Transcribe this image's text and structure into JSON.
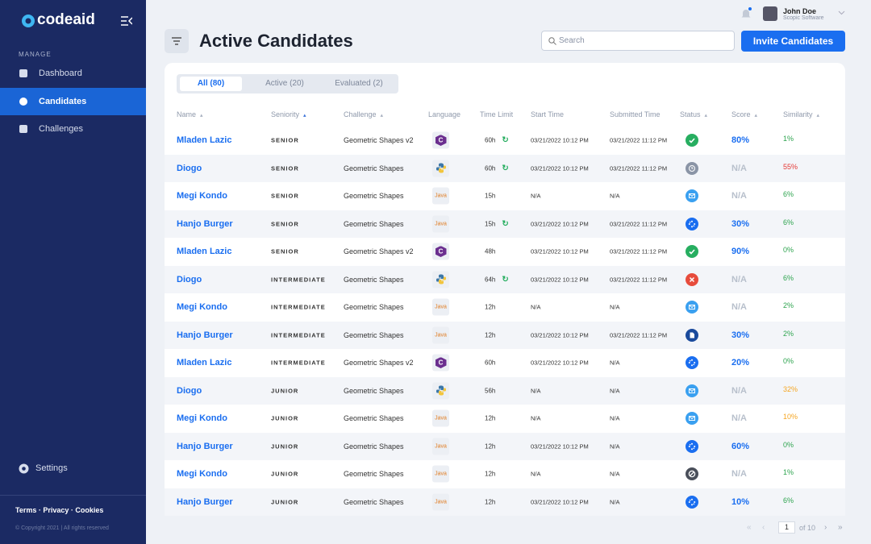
{
  "sidebar": {
    "logo": "codeaid",
    "section": "MANAGE",
    "nav": [
      "Dashboard",
      "Candidates",
      "Challenges"
    ],
    "active_nav": 1,
    "settings": "Settings",
    "footer_links": [
      "Terms",
      "Privacy",
      "Cookies"
    ],
    "copyright": "© Copyright 2021 | All rights reserved"
  },
  "header": {
    "title": "Active Candidates",
    "search_placeholder": "Search",
    "invite_button": "Invite Candidates",
    "user": {
      "name": "John Doe",
      "company": "Scopic Software"
    }
  },
  "tabs": [
    "All (80)",
    "Active (20)",
    "Evaluated (2)"
  ],
  "active_tab": 0,
  "table": {
    "columns": [
      {
        "label": "Name",
        "sortable": true
      },
      {
        "label": "Seniority",
        "sortable": true
      },
      {
        "label": "Challenge",
        "sortable": true
      },
      {
        "label": "Language",
        "sortable": false
      },
      {
        "label": "Time Limit",
        "sortable": false
      },
      {
        "label": "Start Time",
        "sortable": false
      },
      {
        "label": "Submitted Time",
        "sortable": false
      },
      {
        "label": "Status",
        "sortable": true
      },
      {
        "label": "Score",
        "sortable": true
      },
      {
        "label": "Similarity",
        "sortable": true
      }
    ],
    "rows": [
      {
        "name": "Mladen Lazic",
        "seniority": "SENIOR",
        "challenge": "Geometric Shapes v2",
        "language": "C",
        "time_limit": "60h",
        "extended": true,
        "start": "03/21/2022 10:12 PM",
        "submitted": "03/21/2022 11:12 PM",
        "status": "passed",
        "score": "80%",
        "similarity": "1%",
        "similarity_level": "low"
      },
      {
        "name": "Diogo",
        "seniority": "SENIOR",
        "challenge": "Geometric Shapes",
        "language": "Python",
        "time_limit": "60h",
        "extended": true,
        "start": "03/21/2022 10:12 PM",
        "submitted": "03/21/2022 11:12 PM",
        "status": "expired",
        "score": "N/A",
        "similarity": "55%",
        "similarity_level": "high"
      },
      {
        "name": "Megi Kondo",
        "seniority": "SENIOR",
        "challenge": "Geometric Shapes",
        "language": "Java",
        "time_limit": "15h",
        "extended": false,
        "start": "N/A",
        "submitted": "N/A",
        "status": "invited",
        "score": "N/A",
        "similarity": "6%",
        "similarity_level": "low"
      },
      {
        "name": "Hanjo Burger",
        "seniority": "SENIOR",
        "challenge": "Geometric Shapes",
        "language": "Java",
        "time_limit": "15h",
        "extended": true,
        "start": "03/21/2022 10:12 PM",
        "submitted": "03/21/2022 11:12 PM",
        "status": "in_progress",
        "score": "30%",
        "similarity": "6%",
        "similarity_level": "low"
      },
      {
        "name": "Mladen Lazic",
        "seniority": "SENIOR",
        "challenge": "Geometric Shapes v2",
        "language": "C",
        "time_limit": "48h",
        "extended": false,
        "start": "03/21/2022 10:12 PM",
        "submitted": "03/21/2022 11:12 PM",
        "status": "passed",
        "score": "90%",
        "similarity": "0%",
        "similarity_level": "low"
      },
      {
        "name": "Diogo",
        "seniority": "INTERMEDIATE",
        "challenge": "Geometric Shapes",
        "language": "Python",
        "time_limit": "64h",
        "extended": true,
        "start": "03/21/2022 10:12 PM",
        "submitted": "03/21/2022 11:12 PM",
        "status": "failed",
        "score": "N/A",
        "similarity": "6%",
        "similarity_level": "low"
      },
      {
        "name": "Megi Kondo",
        "seniority": "INTERMEDIATE",
        "challenge": "Geometric Shapes",
        "language": "Java",
        "time_limit": "12h",
        "extended": false,
        "start": "N/A",
        "submitted": "N/A",
        "status": "invited",
        "score": "N/A",
        "similarity": "2%",
        "similarity_level": "low"
      },
      {
        "name": "Hanjo Burger",
        "seniority": "INTERMEDIATE",
        "challenge": "Geometric Shapes",
        "language": "Java",
        "time_limit": "12h",
        "extended": false,
        "start": "03/21/2022 10:12 PM",
        "submitted": "03/21/2022 11:12 PM",
        "status": "submitted",
        "score": "30%",
        "similarity": "2%",
        "similarity_level": "low"
      },
      {
        "name": "Mladen Lazic",
        "seniority": "INTERMEDIATE",
        "challenge": "Geometric Shapes v2",
        "language": "C",
        "time_limit": "60h",
        "extended": false,
        "start": "03/21/2022 10:12 PM",
        "submitted": "N/A",
        "status": "in_progress",
        "score": "20%",
        "similarity": "0%",
        "similarity_level": "low"
      },
      {
        "name": "Diogo",
        "seniority": "JUNIOR",
        "challenge": "Geometric Shapes",
        "language": "Python",
        "time_limit": "56h",
        "extended": false,
        "start": "N/A",
        "submitted": "N/A",
        "status": "invited",
        "score": "N/A",
        "similarity": "32%",
        "similarity_level": "medium"
      },
      {
        "name": "Megi Kondo",
        "seniority": "JUNIOR",
        "challenge": "Geometric Shapes",
        "language": "Java",
        "time_limit": "12h",
        "extended": false,
        "start": "N/A",
        "submitted": "N/A",
        "status": "invited",
        "score": "N/A",
        "similarity": "10%",
        "similarity_level": "medium"
      },
      {
        "name": "Hanjo Burger",
        "seniority": "JUNIOR",
        "challenge": "Geometric Shapes",
        "language": "Java",
        "time_limit": "12h",
        "extended": false,
        "start": "03/21/2022 10:12 PM",
        "submitted": "N/A",
        "status": "in_progress",
        "score": "60%",
        "similarity": "0%",
        "similarity_level": "low"
      },
      {
        "name": "Megi Kondo",
        "seniority": "JUNIOR",
        "challenge": "Geometric Shapes",
        "language": "Java",
        "time_limit": "12h",
        "extended": false,
        "start": "N/A",
        "submitted": "N/A",
        "status": "cancelled",
        "score": "N/A",
        "similarity": "1%",
        "similarity_level": "low"
      },
      {
        "name": "Hanjo Burger",
        "seniority": "JUNIOR",
        "challenge": "Geometric Shapes",
        "language": "Java",
        "time_limit": "12h",
        "extended": false,
        "start": "03/21/2022 10:12 PM",
        "submitted": "N/A",
        "status": "in_progress",
        "score": "10%",
        "similarity": "6%",
        "similarity_level": "low"
      }
    ]
  },
  "pagination": {
    "page": "1",
    "of": "of 10"
  }
}
